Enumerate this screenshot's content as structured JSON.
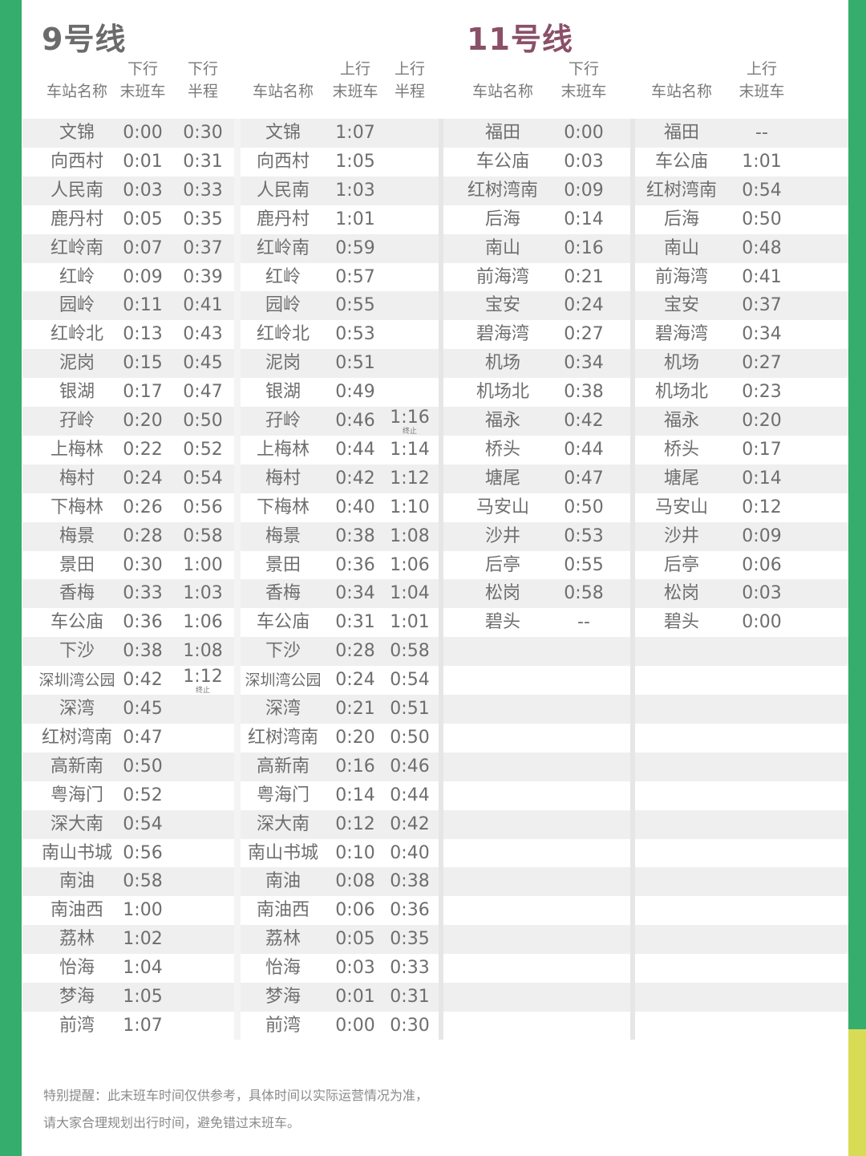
{
  "colors": {
    "green": "#35ad6c",
    "yellow": "#d8dc55",
    "line9_title": "#6b6b6b",
    "line11_title": "#8a5068",
    "row_alt": "#efefef"
  },
  "line9": {
    "title": "9号线",
    "headers": {
      "station": "车站名称",
      "down_top": "下行",
      "down_last": "末班车",
      "down_half_top": "下行",
      "down_half": "半程",
      "up_top": "上行",
      "up_last": "末班车",
      "up_half_top": "上行",
      "up_half": "半程"
    },
    "down": [
      [
        "文锦",
        "0:00",
        "0:30"
      ],
      [
        "向西村",
        "0:01",
        "0:31"
      ],
      [
        "人民南",
        "0:03",
        "0:33"
      ],
      [
        "鹿丹村",
        "0:05",
        "0:35"
      ],
      [
        "红岭南",
        "0:07",
        "0:37"
      ],
      [
        "红岭",
        "0:09",
        "0:39"
      ],
      [
        "园岭",
        "0:11",
        "0:41"
      ],
      [
        "红岭北",
        "0:13",
        "0:43"
      ],
      [
        "泥岗",
        "0:15",
        "0:45"
      ],
      [
        "银湖",
        "0:17",
        "0:47"
      ],
      [
        "孖岭",
        "0:20",
        "0:50"
      ],
      [
        "上梅林",
        "0:22",
        "0:52"
      ],
      [
        "梅村",
        "0:24",
        "0:54"
      ],
      [
        "下梅林",
        "0:26",
        "0:56"
      ],
      [
        "梅景",
        "0:28",
        "0:58"
      ],
      [
        "景田",
        "0:30",
        "1:00"
      ],
      [
        "香梅",
        "0:33",
        "1:03"
      ],
      [
        "车公庙",
        "0:36",
        "1:06"
      ],
      [
        "下沙",
        "0:38",
        "1:08"
      ],
      [
        "深圳湾公园",
        "0:42",
        "1:12"
      ],
      [
        "深湾",
        "0:45",
        ""
      ],
      [
        "红树湾南",
        "0:47",
        ""
      ],
      [
        "高新南",
        "0:50",
        ""
      ],
      [
        "粤海门",
        "0:52",
        ""
      ],
      [
        "深大南",
        "0:54",
        ""
      ],
      [
        "南山书城",
        "0:56",
        ""
      ],
      [
        "南油",
        "0:58",
        ""
      ],
      [
        "南油西",
        "1:00",
        ""
      ],
      [
        "荔林",
        "1:02",
        ""
      ],
      [
        "怡海",
        "1:04",
        ""
      ],
      [
        "梦海",
        "1:05",
        ""
      ],
      [
        "前湾",
        "1:07",
        ""
      ]
    ],
    "up": [
      [
        "文锦",
        "1:07",
        ""
      ],
      [
        "向西村",
        "1:05",
        ""
      ],
      [
        "人民南",
        "1:03",
        ""
      ],
      [
        "鹿丹村",
        "1:01",
        ""
      ],
      [
        "红岭南",
        "0:59",
        ""
      ],
      [
        "红岭",
        "0:57",
        ""
      ],
      [
        "园岭",
        "0:55",
        ""
      ],
      [
        "红岭北",
        "0:53",
        ""
      ],
      [
        "泥岗",
        "0:51",
        ""
      ],
      [
        "银湖",
        "0:49",
        ""
      ],
      [
        "孖岭",
        "0:46",
        "1:16"
      ],
      [
        "上梅林",
        "0:44",
        "1:14"
      ],
      [
        "梅村",
        "0:42",
        "1:12"
      ],
      [
        "下梅林",
        "0:40",
        "1:10"
      ],
      [
        "梅景",
        "0:38",
        "1:08"
      ],
      [
        "景田",
        "0:36",
        "1:06"
      ],
      [
        "香梅",
        "0:34",
        "1:04"
      ],
      [
        "车公庙",
        "0:31",
        "1:01"
      ],
      [
        "下沙",
        "0:28",
        "0:58"
      ],
      [
        "深圳湾公园",
        "0:24",
        "0:54"
      ],
      [
        "深湾",
        "0:21",
        "0:51"
      ],
      [
        "红树湾南",
        "0:20",
        "0:50"
      ],
      [
        "高新南",
        "0:16",
        "0:46"
      ],
      [
        "粤海门",
        "0:14",
        "0:44"
      ],
      [
        "深大南",
        "0:12",
        "0:42"
      ],
      [
        "南山书城",
        "0:10",
        "0:40"
      ],
      [
        "南油",
        "0:08",
        "0:38"
      ],
      [
        "南油西",
        "0:06",
        "0:36"
      ],
      [
        "荔林",
        "0:05",
        "0:35"
      ],
      [
        "怡海",
        "0:03",
        "0:33"
      ],
      [
        "梦海",
        "0:01",
        "0:31"
      ],
      [
        "前湾",
        "0:00",
        "0:30"
      ]
    ],
    "down_terminal_note": "终止",
    "up_terminal_note": "终止"
  },
  "line11": {
    "title": "11号线",
    "headers": {
      "station": "车站名称",
      "down_top": "下行",
      "down_last": "末班车",
      "up_top": "上行",
      "up_last": "末班车"
    },
    "down": [
      [
        "福田",
        "0:00"
      ],
      [
        "车公庙",
        "0:03"
      ],
      [
        "红树湾南",
        "0:09"
      ],
      [
        "后海",
        "0:14"
      ],
      [
        "南山",
        "0:16"
      ],
      [
        "前海湾",
        "0:21"
      ],
      [
        "宝安",
        "0:24"
      ],
      [
        "碧海湾",
        "0:27"
      ],
      [
        "机场",
        "0:34"
      ],
      [
        "机场北",
        "0:38"
      ],
      [
        "福永",
        "0:42"
      ],
      [
        "桥头",
        "0:44"
      ],
      [
        "塘尾",
        "0:47"
      ],
      [
        "马安山",
        "0:50"
      ],
      [
        "沙井",
        "0:53"
      ],
      [
        "后亭",
        "0:55"
      ],
      [
        "松岗",
        "0:58"
      ],
      [
        "碧头",
        "--"
      ]
    ],
    "up": [
      [
        "福田",
        "--"
      ],
      [
        "车公庙",
        "1:01"
      ],
      [
        "红树湾南",
        "0:54"
      ],
      [
        "后海",
        "0:50"
      ],
      [
        "南山",
        "0:48"
      ],
      [
        "前海湾",
        "0:41"
      ],
      [
        "宝安",
        "0:37"
      ],
      [
        "碧海湾",
        "0:34"
      ],
      [
        "机场",
        "0:27"
      ],
      [
        "机场北",
        "0:23"
      ],
      [
        "福永",
        "0:20"
      ],
      [
        "桥头",
        "0:17"
      ],
      [
        "塘尾",
        "0:14"
      ],
      [
        "马安山",
        "0:12"
      ],
      [
        "沙井",
        "0:09"
      ],
      [
        "后亭",
        "0:06"
      ],
      [
        "松岗",
        "0:03"
      ],
      [
        "碧头",
        "0:00"
      ]
    ]
  },
  "footer": {
    "line1": "特别提醒：此末班车时间仅供参考，具体时间以实际运营情况为准，",
    "line2": "请大家合理规划出行时间，避免错过末班车。"
  }
}
